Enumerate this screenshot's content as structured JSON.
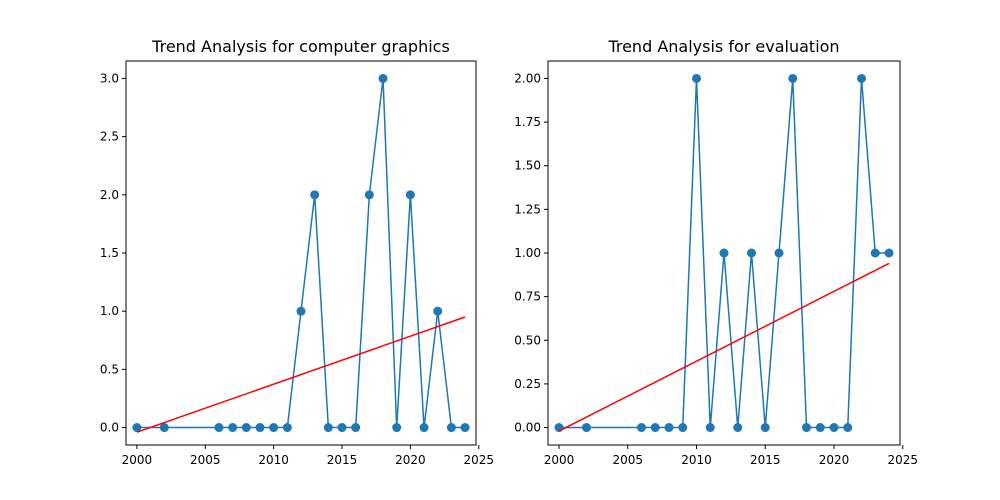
{
  "chart_data": [
    {
      "type": "line",
      "title": "Trend Analysis for computer graphics",
      "xlabel": "",
      "ylabel": "",
      "xlim": [
        1999.2,
        2024.8
      ],
      "ylim": [
        -0.15,
        3.15
      ],
      "xticks": [
        2000,
        2005,
        2010,
        2015,
        2020,
        2025
      ],
      "xtick_labels": [
        "2000",
        "2005",
        "2010",
        "2015",
        "2020",
        "2025"
      ],
      "yticks": [
        0,
        0.5,
        1.0,
        1.5,
        2.0,
        2.5,
        3.0
      ],
      "ytick_labels": [
        "0.0",
        "0.5",
        "1.0",
        "1.5",
        "2.0",
        "2.5",
        "3.0"
      ],
      "grid": false,
      "series": [
        {
          "color": "#1f77b4",
          "marker": "circle",
          "x": [
            2000,
            2002,
            2006,
            2007,
            2008,
            2009,
            2010,
            2011,
            2012,
            2013,
            2014,
            2015,
            2016,
            2017,
            2018,
            2019,
            2020,
            2021,
            2022,
            2023,
            2024
          ],
          "y": [
            0,
            0,
            0,
            0,
            0,
            0,
            0,
            0,
            1,
            2,
            0,
            0,
            0,
            2,
            3,
            0,
            2,
            0,
            1,
            0,
            0
          ]
        }
      ],
      "trend_line": {
        "color": "#ff0000",
        "x": [
          2000,
          2024
        ],
        "y": [
          -0.04,
          0.95
        ]
      }
    },
    {
      "type": "line",
      "title": "Trend Analysis for evaluation",
      "xlabel": "",
      "ylabel": "",
      "xlim": [
        1999.2,
        2024.8
      ],
      "ylim": [
        -0.1,
        2.1
      ],
      "xticks": [
        2000,
        2005,
        2010,
        2015,
        2020,
        2025
      ],
      "xtick_labels": [
        "2000",
        "2005",
        "2010",
        "2015",
        "2020",
        "2025"
      ],
      "yticks": [
        0,
        0.25,
        0.5,
        0.75,
        1.0,
        1.25,
        1.5,
        1.75,
        2.0
      ],
      "ytick_labels": [
        "0.00",
        "0.25",
        "0.50",
        "0.75",
        "1.00",
        "1.25",
        "1.50",
        "1.75",
        "2.00"
      ],
      "grid": false,
      "series": [
        {
          "color": "#1f77b4",
          "marker": "circle",
          "x": [
            2000,
            2002,
            2006,
            2007,
            2008,
            2009,
            2010,
            2011,
            2012,
            2013,
            2014,
            2015,
            2016,
            2017,
            2018,
            2019,
            2020,
            2021,
            2022,
            2023,
            2024
          ],
          "y": [
            0,
            0,
            0,
            0,
            0,
            0,
            2,
            0,
            1,
            0,
            1,
            0,
            1,
            2,
            0,
            0,
            0,
            0,
            2,
            1,
            1
          ]
        }
      ],
      "trend_line": {
        "color": "#ff0000",
        "x": [
          2000,
          2024
        ],
        "y": [
          -0.02,
          0.94
        ]
      }
    }
  ]
}
